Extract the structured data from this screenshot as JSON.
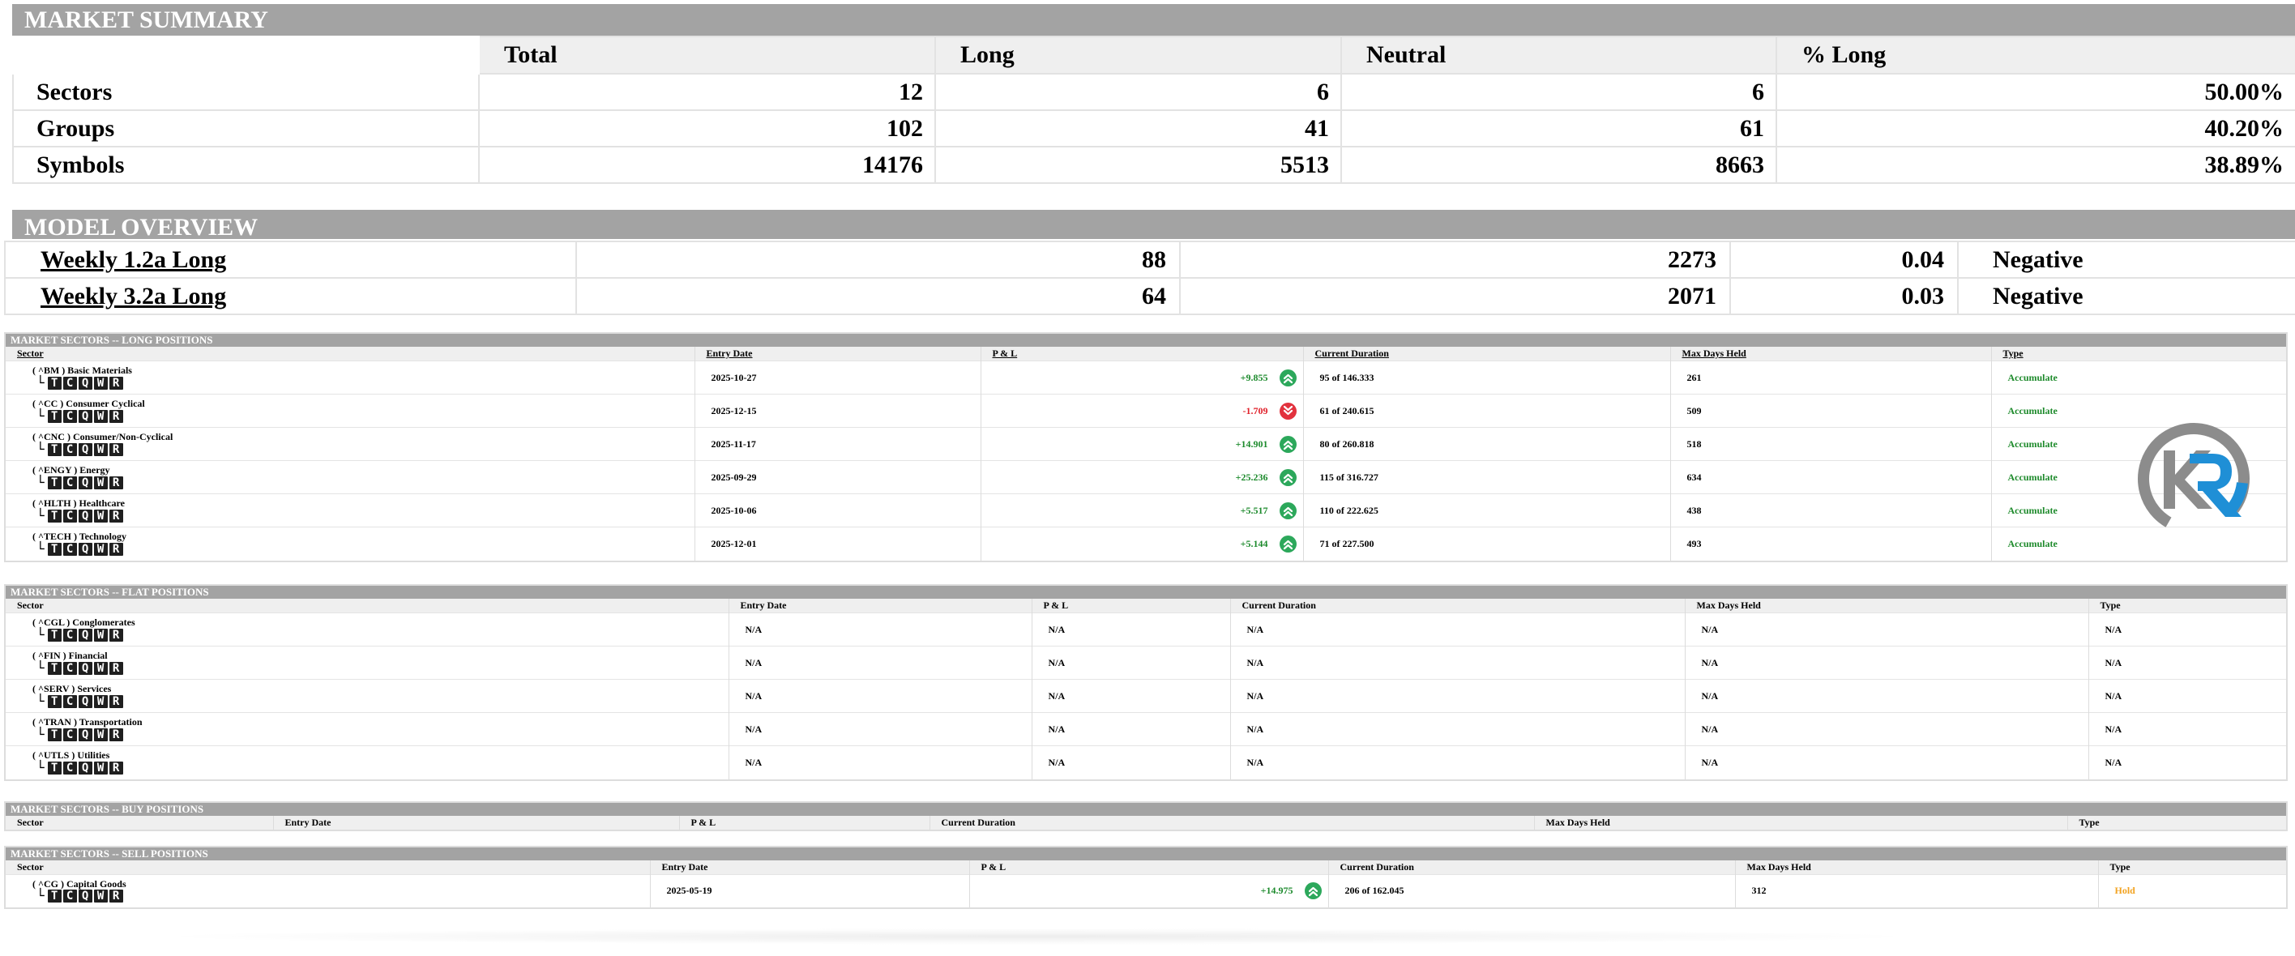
{
  "market_summary": {
    "title": "MARKET SUMMARY",
    "headers": [
      "Total",
      "Long",
      "Neutral",
      "% Long"
    ],
    "rows": [
      {
        "label": "Sectors",
        "total": "12",
        "long": "6",
        "neutral": "6",
        "pct": "50.00%"
      },
      {
        "label": "Groups",
        "total": "102",
        "long": "41",
        "neutral": "61",
        "pct": "40.20%"
      },
      {
        "label": "Symbols",
        "total": "14176",
        "long": "5513",
        "neutral": "8663",
        "pct": "38.89%"
      }
    ]
  },
  "model_overview": {
    "title": "MODEL OVERVIEW",
    "rows": [
      {
        "name": "Weekly 1.2a Long",
        "a": "88",
        "b": "2273",
        "c": "0.04",
        "signal": "Negative"
      },
      {
        "name": "Weekly 3.2a Long",
        "a": "64",
        "b": "2071",
        "c": "0.03",
        "signal": "Negative"
      }
    ]
  },
  "badges": [
    "T",
    "C",
    "Q",
    "W",
    "R"
  ],
  "tree_glyph": "└",
  "columns": {
    "sector": "Sector",
    "entry": "Entry Date",
    "pl": "P & L",
    "duration": "Current Duration",
    "maxdays": "Max Days Held",
    "type": "Type"
  },
  "long_positions": {
    "title": "MARKET SECTORS -- LONG POSITIONS",
    "rows": [
      {
        "sector": "( ^BM ) Basic Materials",
        "entry": "2025-10-27",
        "pl": "+9.855",
        "dir": "up",
        "duration": "95 of 146.333",
        "maxdays": "261",
        "type": "Accumulate"
      },
      {
        "sector": "( ^CC ) Consumer Cyclical",
        "entry": "2025-12-15",
        "pl": "-1.709",
        "dir": "down",
        "duration": "61 of 240.615",
        "maxdays": "509",
        "type": "Accumulate"
      },
      {
        "sector": "( ^CNC ) Consumer/Non-Cyclical",
        "entry": "2025-11-17",
        "pl": "+14.901",
        "dir": "up",
        "duration": "80 of 260.818",
        "maxdays": "518",
        "type": "Accumulate"
      },
      {
        "sector": "( ^ENGY ) Energy",
        "entry": "2025-09-29",
        "pl": "+25.236",
        "dir": "up",
        "duration": "115 of 316.727",
        "maxdays": "634",
        "type": "Accumulate"
      },
      {
        "sector": "( ^HLTH ) Healthcare",
        "entry": "2025-10-06",
        "pl": "+5.517",
        "dir": "up",
        "duration": "110 of 222.625",
        "maxdays": "438",
        "type": "Accumulate"
      },
      {
        "sector": "( ^TECH ) Technology",
        "entry": "2025-12-01",
        "pl": "+5.144",
        "dir": "up",
        "duration": "71 of 227.500",
        "maxdays": "493",
        "type": "Accumulate"
      }
    ]
  },
  "flat_positions": {
    "title": "MARKET SECTORS -- FLAT POSITIONS",
    "rows": [
      {
        "sector": "( ^CGL ) Conglomerates",
        "entry": "N/A",
        "pl": "N/A",
        "duration": "N/A",
        "maxdays": "N/A",
        "type": "N/A"
      },
      {
        "sector": "( ^FIN ) Financial",
        "entry": "N/A",
        "pl": "N/A",
        "duration": "N/A",
        "maxdays": "N/A",
        "type": "N/A"
      },
      {
        "sector": "( ^SERV ) Services",
        "entry": "N/A",
        "pl": "N/A",
        "duration": "N/A",
        "maxdays": "N/A",
        "type": "N/A"
      },
      {
        "sector": "( ^TRAN ) Transportation",
        "entry": "N/A",
        "pl": "N/A",
        "duration": "N/A",
        "maxdays": "N/A",
        "type": "N/A"
      },
      {
        "sector": "( ^UTLS ) Utilities",
        "entry": "N/A",
        "pl": "N/A",
        "duration": "N/A",
        "maxdays": "N/A",
        "type": "N/A"
      }
    ]
  },
  "buy_positions": {
    "title": "MARKET SECTORS -- BUY POSITIONS",
    "rows": []
  },
  "sell_positions": {
    "title": "MARKET SECTORS -- SELL POSITIONS",
    "rows": [
      {
        "sector": "( ^CG ) Capital Goods",
        "entry": "2025-05-19",
        "pl": "+14.975",
        "dir": "up",
        "duration": "206 of 162.045",
        "maxdays": "312",
        "type": "Hold"
      }
    ]
  },
  "colors": {
    "title_bar": "#a3a3a3",
    "positive": "#1c8a2c",
    "negative": "#e0202a",
    "up_icon": "#2ca85b",
    "down_icon": "#e2323e",
    "accumulate": "#1d8a2b",
    "hold": "#f2a321",
    "logo_blue": "#1f8fd6",
    "logo_gray": "#8c8c8c"
  },
  "icons": {
    "up": "double-chevron-up-icon",
    "down": "double-chevron-down-icon",
    "logo": "kr-logo"
  }
}
